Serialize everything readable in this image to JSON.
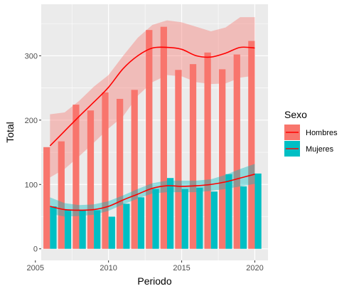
{
  "chart_data": {
    "type": "bar",
    "x": [
      2006,
      2007,
      2008,
      2009,
      2010,
      2011,
      2012,
      2013,
      2014,
      2015,
      2016,
      2017,
      2018,
      2019,
      2020
    ],
    "series": [
      {
        "name": "Hombres",
        "values": [
          158,
          167,
          224,
          215,
          243,
          233,
          247,
          340,
          345,
          278,
          287,
          305,
          279,
          302,
          323
        ],
        "bar_color": "#f8766d",
        "smooth": [
          160,
          183,
          206,
          228,
          251,
          280,
          300,
          312,
          313,
          310,
          300,
          298,
          304,
          313,
          312
        ],
        "smooth_lower": [
          111,
          124,
          144,
          165,
          187,
          206,
          238,
          259,
          270,
          268,
          259,
          256,
          257,
          266,
          269
        ],
        "smooth_upper": [
          209,
          212,
          230,
          252,
          270,
          300,
          328,
          348,
          355,
          352,
          345,
          338,
          344,
          360,
          360
        ]
      },
      {
        "name": "Mujeres",
        "values": [
          66,
          61,
          60,
          60,
          50,
          70,
          80,
          93,
          110,
          93,
          95,
          89,
          116,
          97,
          117
        ],
        "bar_color": "#00bfc4",
        "smooth": [
          66,
          61,
          60,
          61,
          66,
          76,
          85,
          94,
          98,
          97,
          98,
          100,
          104,
          110,
          116
        ],
        "smooth_lower": [
          55,
          50,
          51,
          53,
          59,
          69,
          78,
          86,
          88,
          88,
          88,
          90,
          93,
          97,
          101
        ],
        "smooth_upper": [
          80,
          71,
          68,
          69,
          74,
          83,
          93,
          102,
          106,
          106,
          106,
          108,
          115,
          124,
          132
        ]
      }
    ],
    "smooth_line_color": "#ff0000",
    "xlabel": "Periodo",
    "ylabel": "Total",
    "xlim": [
      2005.4,
      2020.9
    ],
    "ylim": [
      -18,
      380
    ],
    "x_ticks": [
      2005,
      2010,
      2015,
      2020
    ],
    "y_ticks": [
      0,
      100,
      200,
      300
    ],
    "grid": true,
    "panel_background": "#ebebeb",
    "legend": {
      "title": "Sexo",
      "position": "right",
      "items": [
        "Hombres",
        "Mujeres"
      ]
    }
  }
}
